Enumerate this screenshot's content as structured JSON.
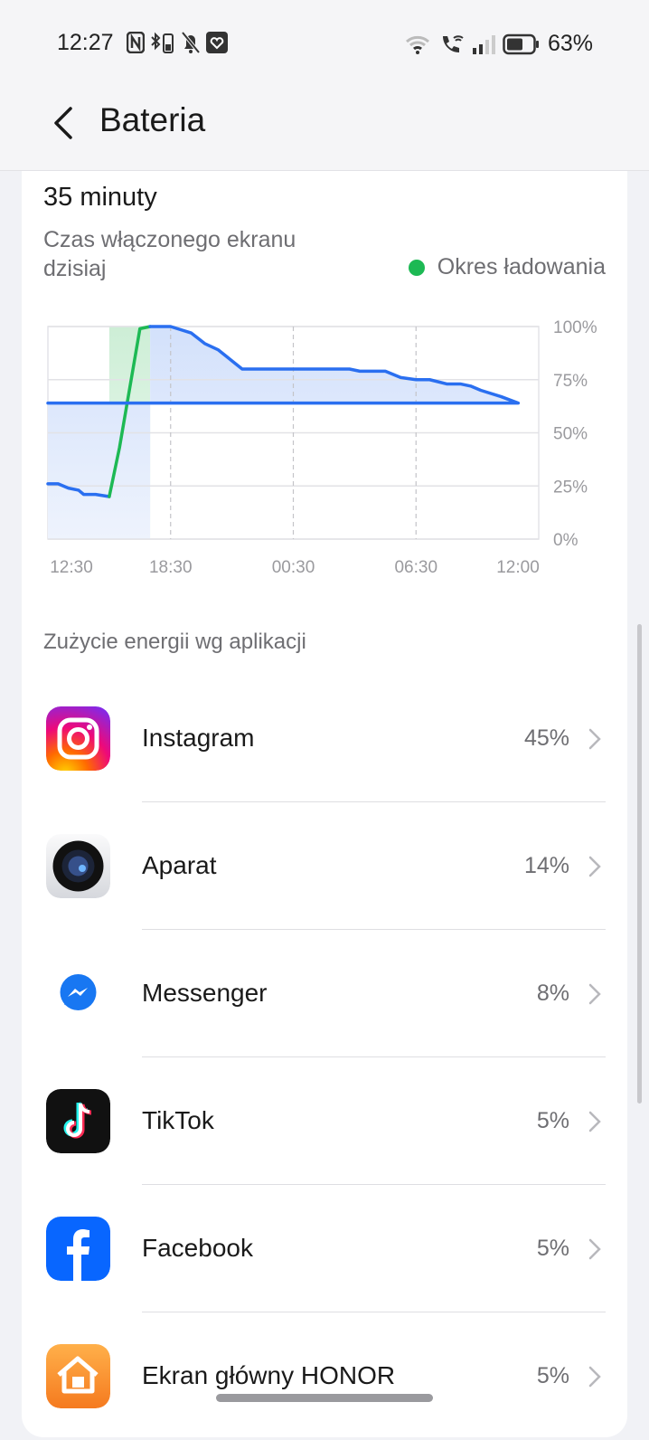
{
  "status_bar": {
    "time": "12:27",
    "battery": "63%",
    "battery_level": 0.63,
    "icons_left": [
      "nfc-icon",
      "bluetooth-battery-icon",
      "bell-off-icon",
      "heart-app-icon"
    ],
    "icons_right": [
      "wifi-icon",
      "wifi-calling-icon",
      "signal-icon",
      "battery-icon"
    ]
  },
  "header": {
    "title": "Bateria"
  },
  "summary": {
    "screen_time": "35 minuty",
    "screen_time_label": "Czas włączonego ekranu dzisiaj",
    "legend_charging": "Okres ładowania"
  },
  "colors": {
    "line": "#2a6ff0",
    "charging": "#1db954",
    "fill": "#dbe6fc"
  },
  "chart_data": {
    "type": "line",
    "x_ticks": [
      "12:30",
      "18:30",
      "00:30",
      "06:30",
      "12:00"
    ],
    "y_ticks": [
      "100%",
      "75%",
      "50%",
      "25%",
      "0%"
    ],
    "ylim": [
      0,
      100
    ],
    "grid": true,
    "legend": "top-right",
    "series": [
      {
        "kind": "discharge",
        "points": [
          [
            "12:30",
            26
          ],
          [
            "13:00",
            26
          ],
          [
            "13:30",
            24
          ],
          [
            "14:00",
            23
          ],
          [
            "14:15",
            21
          ],
          [
            "14:50",
            21
          ],
          [
            "15:30",
            20
          ]
        ]
      },
      {
        "kind": "charging",
        "points": [
          [
            "15:30",
            20
          ],
          [
            "16:00",
            43
          ],
          [
            "17:00",
            99
          ],
          [
            "17:30",
            100
          ]
        ]
      },
      {
        "kind": "discharge",
        "points": [
          [
            "17:30",
            100
          ],
          [
            "18:30",
            100
          ],
          [
            "19:30",
            97
          ],
          [
            "20:10",
            92
          ],
          [
            "20:50",
            89
          ],
          [
            "22:00",
            80
          ],
          [
            "03:15",
            80
          ],
          [
            "03:45",
            79
          ],
          [
            "05:00",
            79
          ],
          [
            "05:45",
            76
          ],
          [
            "06:30",
            75
          ],
          [
            "07:10",
            75
          ],
          [
            "08:00",
            73
          ],
          [
            "08:40",
            73
          ],
          [
            "09:10",
            72
          ],
          [
            "09:40",
            70
          ],
          [
            "10:40",
            67
          ],
          [
            "11:30",
            64
          ],
          [
            "12:30",
            64
          ]
        ]
      }
    ]
  },
  "apps_section": {
    "title": "Zużycie energii wg aplikacji"
  },
  "apps": [
    {
      "name": "Instagram",
      "percent": "45%",
      "icon": "instagram-icon"
    },
    {
      "name": "Aparat",
      "percent": "14%",
      "icon": "camera-icon"
    },
    {
      "name": "Messenger",
      "percent": "8%",
      "icon": "messenger-icon"
    },
    {
      "name": "TikTok",
      "percent": "5%",
      "icon": "tiktok-icon"
    },
    {
      "name": "Facebook",
      "percent": "5%",
      "icon": "facebook-icon"
    },
    {
      "name": "Ekran główny HONOR",
      "percent": "5%",
      "icon": "honor-home-icon"
    }
  ]
}
